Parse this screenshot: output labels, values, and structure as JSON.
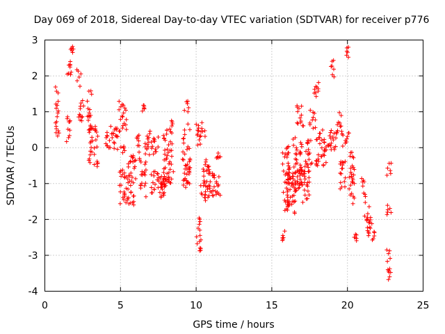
{
  "chart_data": {
    "type": "scatter",
    "title": "Day 069 of 2018, Sidereal Day-to-day VTEC variation (SDTVAR) for receiver p776",
    "xlabel": "GPS time / hours",
    "ylabel": "SDTVAR / TECUs",
    "xlim": [
      0,
      25
    ],
    "ylim": [
      -4,
      3
    ],
    "xticks": [
      "0",
      "5",
      "10",
      "15",
      "20",
      "25"
    ],
    "yticks": [
      "-4",
      "-3",
      "-2",
      "-1",
      "0",
      "1",
      "2",
      "3"
    ],
    "grid": true,
    "marker": "+",
    "color": "#ff0000",
    "series": [
      {
        "name": "SDTVAR",
        "clusters": [
          {
            "x": [
              0.7,
              0.95
            ],
            "y": [
              0.2,
              1.9
            ]
          },
          {
            "x": [
              1.4,
              1.7
            ],
            "y": [
              0.1,
              0.9
            ]
          },
          {
            "x": [
              1.4,
              1.8
            ],
            "y": [
              1.9,
              2.4
            ]
          },
          {
            "x": [
              1.7,
              1.9
            ],
            "y": [
              2.6,
              2.85
            ]
          },
          {
            "x": [
              2.1,
              2.4
            ],
            "y": [
              1.7,
              2.2
            ]
          },
          {
            "x": [
              2.2,
              2.6
            ],
            "y": [
              0.7,
              1.4
            ]
          },
          {
            "x": [
              2.8,
              3.1
            ],
            "y": [
              0.4,
              1.6
            ]
          },
          {
            "x": [
              2.9,
              3.5
            ],
            "y": [
              -0.6,
              0.6
            ]
          },
          {
            "x": [
              4.0,
              4.9
            ],
            "y": [
              -0.1,
              0.6
            ]
          },
          {
            "x": [
              4.9,
              5.4
            ],
            "y": [
              0.4,
              1.3
            ]
          },
          {
            "x": [
              4.9,
              5.5
            ],
            "y": [
              -1.6,
              -0.6
            ]
          },
          {
            "x": [
              5.0,
              5.3
            ],
            "y": [
              -0.3,
              0.1
            ]
          },
          {
            "x": [
              5.5,
              6.0
            ],
            "y": [
              -1.7,
              -0.2
            ]
          },
          {
            "x": [
              6.0,
              6.3
            ],
            "y": [
              -0.4,
              0.4
            ]
          },
          {
            "x": [
              6.3,
              6.7
            ],
            "y": [
              -1.4,
              -0.4
            ]
          },
          {
            "x": [
              6.4,
              6.6
            ],
            "y": [
              1.0,
              1.25
            ]
          },
          {
            "x": [
              6.6,
              7.5
            ],
            "y": [
              -0.2,
              0.5
            ]
          },
          {
            "x": [
              7.0,
              7.5
            ],
            "y": [
              -1.3,
              -0.6
            ]
          },
          {
            "x": [
              7.5,
              8.0
            ],
            "y": [
              -1.7,
              -0.6
            ]
          },
          {
            "x": [
              7.8,
              8.5
            ],
            "y": [
              -1.0,
              0.5
            ]
          },
          {
            "x": [
              8.2,
              8.5
            ],
            "y": [
              0.4,
              0.8
            ]
          },
          {
            "x": [
              9.2,
              9.5
            ],
            "y": [
              1.0,
              1.3
            ]
          },
          {
            "x": [
              9.1,
              9.6
            ],
            "y": [
              -1.2,
              0.7
            ]
          },
          {
            "x": [
              10.0,
              10.4
            ],
            "y": [
              -2.9,
              -2.4
            ]
          },
          {
            "x": [
              10.1,
              10.3
            ],
            "y": [
              -2.3,
              -1.8
            ]
          },
          {
            "x": [
              10.0,
              10.6
            ],
            "y": [
              0.0,
              0.7
            ]
          },
          {
            "x": [
              10.3,
              10.9
            ],
            "y": [
              -1.5,
              -0.3
            ]
          },
          {
            "x": [
              10.8,
              11.6
            ],
            "y": [
              -1.4,
              -0.6
            ]
          },
          {
            "x": [
              11.3,
              11.6
            ],
            "y": [
              -0.3,
              -0.1
            ]
          },
          {
            "x": [
              15.7,
              15.9
            ],
            "y": [
              -2.6,
              -2.3
            ]
          },
          {
            "x": [
              15.7,
              16.2
            ],
            "y": [
              -1.8,
              0.1
            ]
          },
          {
            "x": [
              16.0,
              16.6
            ],
            "y": [
              -1.9,
              -0.4
            ]
          },
          {
            "x": [
              16.4,
              17.0
            ],
            "y": [
              -1.2,
              0.3
            ]
          },
          {
            "x": [
              16.6,
              17.1
            ],
            "y": [
              0.6,
              1.2
            ]
          },
          {
            "x": [
              16.8,
              17.5
            ],
            "y": [
              -1.6,
              -0.5
            ]
          },
          {
            "x": [
              17.2,
              17.7
            ],
            "y": [
              -0.6,
              0.2
            ]
          },
          {
            "x": [
              17.5,
              17.9
            ],
            "y": [
              0.5,
              1.1
            ]
          },
          {
            "x": [
              17.8,
              18.1
            ],
            "y": [
              1.2,
              1.9
            ]
          },
          {
            "x": [
              17.9,
              18.6
            ],
            "y": [
              -0.5,
              0.4
            ]
          },
          {
            "x": [
              18.3,
              19.3
            ],
            "y": [
              -0.1,
              0.5
            ]
          },
          {
            "x": [
              18.9,
              19.2
            ],
            "y": [
              1.9,
              2.45
            ]
          },
          {
            "x": [
              19.3,
              19.6
            ],
            "y": [
              0.4,
              1.0
            ]
          },
          {
            "x": [
              19.5,
              19.9
            ],
            "y": [
              -1.2,
              -0.3
            ]
          },
          {
            "x": [
              19.6,
              20.1
            ],
            "y": [
              0.0,
              0.5
            ]
          },
          {
            "x": [
              19.9,
              20.1
            ],
            "y": [
              2.5,
              2.8
            ]
          },
          {
            "x": [
              20.1,
              20.5
            ],
            "y": [
              -1.6,
              -0.1
            ]
          },
          {
            "x": [
              20.4,
              20.6
            ],
            "y": [
              -2.6,
              -2.4
            ]
          },
          {
            "x": [
              20.9,
              21.2
            ],
            "y": [
              -1.4,
              -0.8
            ]
          },
          {
            "x": [
              21.1,
              21.5
            ],
            "y": [
              -2.1,
              -1.5
            ]
          },
          {
            "x": [
              21.3,
              21.8
            ],
            "y": [
              -2.6,
              -1.9
            ]
          },
          {
            "x": [
              22.6,
              22.9
            ],
            "y": [
              -0.8,
              -0.4
            ]
          },
          {
            "x": [
              22.6,
              22.9
            ],
            "y": [
              -1.9,
              -1.6
            ]
          },
          {
            "x": [
              22.6,
              22.9
            ],
            "y": [
              -3.75,
              -2.8
            ]
          }
        ]
      }
    ]
  }
}
